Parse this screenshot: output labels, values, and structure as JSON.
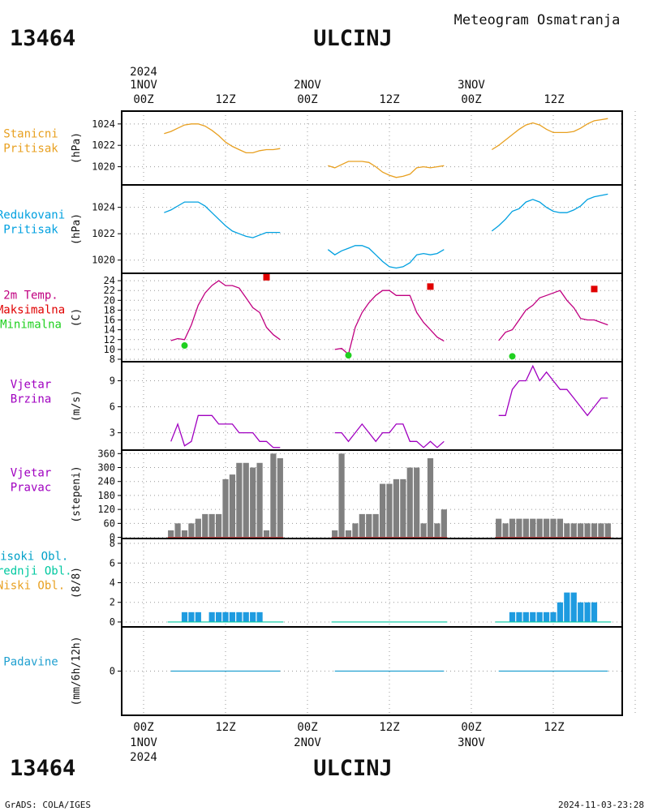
{
  "header": {
    "station_id": "13464",
    "station_name": "ULCINJ",
    "product": "Meteogram Osmatranja"
  },
  "time_axis": {
    "year": "2024",
    "day_labels": [
      "1NOV",
      "2NOV",
      "3NOV"
    ],
    "tick_labels": [
      "00Z",
      "12Z",
      "00Z",
      "12Z",
      "00Z",
      "12Z"
    ]
  },
  "footer": {
    "credit": "GrADS: COLA/IGES",
    "timestamp": "2024-11-03-23:28"
  },
  "colors": {
    "pressure": "#e8a020",
    "reduced_pressure": "#00a0e0",
    "temperature": "#c00080",
    "max_temp": "#e00000",
    "min_temp": "#20d020",
    "wind": "#a000c0",
    "direction_bar": "#808080",
    "direction_base": "#c04040",
    "clouds_high": "#00a0c8",
    "clouds_mid": "#00c8a0",
    "clouds_low": "#e8a020",
    "cloud_bar": "#1e9be0",
    "precip": "#20a0d0",
    "grid": "#999999"
  },
  "chart_data": [
    {
      "type": "line",
      "panel": "station_pressure",
      "labels": [
        "Stanicni",
        "Pritisak"
      ],
      "ylabel": "(hPa)",
      "ylim": [
        1018.3,
        1025.2
      ],
      "yticks": [
        1020,
        1022,
        1024
      ],
      "x_unit": "hours since 1NOV 00Z",
      "segments": [
        {
          "x": [
            3,
            4,
            5,
            6,
            7,
            8,
            9,
            10,
            11,
            12,
            13,
            14,
            15,
            16,
            17,
            18,
            19,
            20
          ],
          "y": [
            1023.1,
            1023.3,
            1023.6,
            1023.9,
            1024.0,
            1024.0,
            1023.8,
            1023.4,
            1022.9,
            1022.3,
            1021.9,
            1021.6,
            1021.3,
            1021.3,
            1021.5,
            1021.6,
            1021.6,
            1021.7
          ]
        },
        {
          "x": [
            27,
            28,
            29,
            30,
            31,
            32,
            33,
            34,
            35,
            36,
            37,
            38,
            39,
            40,
            41,
            42,
            43,
            44
          ],
          "y": [
            1020.1,
            1019.9,
            1020.2,
            1020.5,
            1020.5,
            1020.5,
            1020.4,
            1020.0,
            1019.5,
            1019.2,
            1019.0,
            1019.1,
            1019.3,
            1019.9,
            1020.0,
            1019.9,
            1020.0,
            1020.1
          ]
        },
        {
          "x": [
            51,
            52,
            53,
            54,
            55,
            56,
            57,
            58,
            59,
            60,
            61,
            62,
            63,
            64,
            65,
            66,
            67,
            68
          ],
          "y": [
            1021.6,
            1022.0,
            1022.5,
            1023.0,
            1023.5,
            1023.9,
            1024.1,
            1023.9,
            1023.5,
            1023.2,
            1023.2,
            1023.2,
            1023.3,
            1023.6,
            1024.0,
            1024.3,
            1024.4,
            1024.5
          ]
        }
      ]
    },
    {
      "type": "line",
      "panel": "reduced_pressure",
      "labels": [
        "Redukovani",
        "Pritisak"
      ],
      "ylabel": "(hPa)",
      "ylim": [
        1019.0,
        1025.7
      ],
      "yticks": [
        1020,
        1022,
        1024
      ],
      "x_unit": "hours since 1NOV 00Z",
      "segments": [
        {
          "x": [
            3,
            4,
            5,
            6,
            7,
            8,
            9,
            10,
            11,
            12,
            13,
            14,
            15,
            16,
            17,
            18,
            19,
            20
          ],
          "y": [
            1023.6,
            1023.8,
            1024.1,
            1024.4,
            1024.4,
            1024.4,
            1024.1,
            1023.6,
            1023.1,
            1022.6,
            1022.2,
            1022.0,
            1021.8,
            1021.7,
            1021.9,
            1022.1,
            1022.1,
            1022.1
          ]
        },
        {
          "x": [
            27,
            28,
            29,
            30,
            31,
            32,
            33,
            34,
            35,
            36,
            37,
            38,
            39,
            40,
            41,
            42,
            43,
            44
          ],
          "y": [
            1020.8,
            1020.4,
            1020.7,
            1020.9,
            1021.1,
            1021.1,
            1020.9,
            1020.4,
            1019.9,
            1019.5,
            1019.4,
            1019.5,
            1019.8,
            1020.4,
            1020.5,
            1020.4,
            1020.5,
            1020.8
          ]
        },
        {
          "x": [
            51,
            52,
            53,
            54,
            55,
            56,
            57,
            58,
            59,
            60,
            61,
            62,
            63,
            64,
            65,
            66,
            67,
            68
          ],
          "y": [
            1022.2,
            1022.6,
            1023.1,
            1023.7,
            1023.9,
            1024.4,
            1024.6,
            1024.4,
            1024.0,
            1023.7,
            1023.6,
            1023.6,
            1023.8,
            1024.1,
            1024.6,
            1024.8,
            1024.9,
            1025.0
          ]
        }
      ]
    },
    {
      "type": "line",
      "panel": "temperature",
      "labels": [
        "2m Temp.",
        "Maksimalna",
        "Minimalna"
      ],
      "ylabel": "(C)",
      "ylim": [
        7.5,
        25.5
      ],
      "yticks": [
        8,
        10,
        12,
        14,
        16,
        18,
        20,
        22,
        24
      ],
      "x_unit": "hours since 1NOV 00Z",
      "segments": [
        {
          "x": [
            4,
            5,
            6,
            7,
            8,
            9,
            10,
            11,
            12,
            13,
            14,
            15,
            16,
            17,
            18,
            19,
            20
          ],
          "y": [
            11.8,
            12.2,
            12.0,
            15.0,
            19.0,
            21.5,
            23.0,
            24.0,
            23.0,
            23.0,
            22.5,
            20.5,
            18.5,
            17.5,
            14.5,
            13.0,
            12.0
          ]
        },
        {
          "x": [
            28,
            29,
            30,
            31,
            32,
            33,
            34,
            35,
            36,
            37,
            38,
            39,
            40,
            41,
            42,
            43,
            44
          ],
          "y": [
            10.0,
            10.2,
            9.0,
            14.5,
            17.5,
            19.5,
            21.0,
            22.0,
            22.0,
            21.0,
            21.0,
            21.0,
            17.5,
            15.5,
            14.0,
            12.5,
            11.7
          ]
        },
        {
          "x": [
            52,
            53,
            54,
            55,
            56,
            57,
            58,
            59,
            60,
            61,
            62,
            63,
            64,
            65,
            66,
            67,
            68
          ],
          "y": [
            11.8,
            13.5,
            14.0,
            16.0,
            18.0,
            19.0,
            20.5,
            21.0,
            21.5,
            22.0,
            20.0,
            18.5,
            16.3,
            16.0,
            16.0,
            15.5,
            15.0
          ]
        }
      ],
      "max_points": {
        "x": [
          18,
          42,
          66
        ],
        "y": [
          24.7,
          22.8,
          22.3
        ]
      },
      "min_points": {
        "x": [
          6,
          30,
          54
        ],
        "y": [
          10.8,
          8.8,
          8.6
        ]
      }
    },
    {
      "type": "line",
      "panel": "wind_speed",
      "labels": [
        "Vjetar",
        "Brzina"
      ],
      "ylabel": "(m/s)",
      "ylim": [
        1.0,
        11.2
      ],
      "yticks": [
        3,
        6,
        9
      ],
      "x_unit": "hours since 1NOV 00Z",
      "segments": [
        {
          "x": [
            4,
            5,
            6,
            7,
            8,
            9,
            10,
            11,
            12,
            13,
            14,
            15,
            16,
            17,
            18,
            19,
            20
          ],
          "y": [
            2,
            4,
            1.5,
            2,
            5,
            5,
            5,
            4,
            4,
            4,
            3,
            3,
            3,
            2,
            2,
            1.3,
            1.3
          ]
        },
        {
          "x": [
            28,
            29,
            30,
            31,
            32,
            33,
            34,
            35,
            36,
            37,
            38,
            39,
            40,
            41,
            42,
            43,
            44
          ],
          "y": [
            3,
            3,
            2,
            3,
            4,
            3,
            2,
            3,
            3,
            4,
            4,
            2,
            2,
            1.3,
            2,
            1.3,
            2
          ]
        },
        {
          "x": [
            52,
            53,
            54,
            55,
            56,
            57,
            58,
            59,
            60,
            61,
            62,
            63,
            64,
            65,
            66,
            67,
            68
          ],
          "y": [
            5,
            5,
            8,
            9,
            9,
            10.7,
            9,
            10,
            9,
            8,
            8,
            7,
            6,
            5,
            6,
            7,
            7
          ]
        }
      ]
    },
    {
      "type": "bar",
      "panel": "wind_direction",
      "labels": [
        "Vjetar",
        "Pravac"
      ],
      "ylabel": "(stepeni)",
      "ylim": [
        -5,
        375
      ],
      "yticks": [
        0,
        60,
        120,
        180,
        240,
        300,
        360
      ],
      "x_unit": "hours since 1NOV 00Z",
      "x": [
        4,
        5,
        6,
        7,
        8,
        9,
        10,
        11,
        12,
        13,
        14,
        15,
        16,
        17,
        18,
        19,
        20,
        28,
        29,
        30,
        31,
        32,
        33,
        34,
        35,
        36,
        37,
        38,
        39,
        40,
        41,
        42,
        43,
        44,
        52,
        53,
        54,
        55,
        56,
        57,
        58,
        59,
        60,
        61,
        62,
        63,
        64,
        65,
        66,
        67,
        68
      ],
      "values": [
        30,
        60,
        30,
        60,
        80,
        100,
        100,
        100,
        250,
        270,
        320,
        320,
        300,
        320,
        30,
        360,
        340,
        30,
        360,
        30,
        60,
        100,
        100,
        100,
        230,
        230,
        250,
        250,
        300,
        300,
        60,
        340,
        60,
        120,
        80,
        60,
        80,
        80,
        80,
        80,
        80,
        80,
        80,
        80,
        60,
        60,
        60,
        60,
        60,
        60,
        60
      ]
    },
    {
      "type": "bar",
      "panel": "clouds",
      "labels": [
        "Visoki Obl.",
        "Srednji Obl.",
        "Niski Obl."
      ],
      "ylabel": "(8/8)",
      "ylim": [
        -0.5,
        8.5
      ],
      "yticks": [
        0,
        2,
        4,
        6,
        8
      ],
      "x_unit": "hours since 1NOV 00Z",
      "x": [
        4,
        5,
        6,
        7,
        8,
        9,
        10,
        11,
        12,
        13,
        14,
        15,
        16,
        17,
        18,
        19,
        20,
        28,
        29,
        30,
        31,
        32,
        33,
        34,
        35,
        36,
        37,
        38,
        39,
        40,
        41,
        42,
        43,
        44,
        52,
        53,
        54,
        55,
        56,
        57,
        58,
        59,
        60,
        61,
        62,
        63,
        64,
        65,
        66,
        67,
        68
      ],
      "values": [
        0,
        0,
        1,
        1,
        1,
        0,
        1,
        1,
        1,
        1,
        1,
        1,
        1,
        1,
        0,
        0,
        0,
        0,
        0,
        0,
        0,
        0,
        0,
        0,
        0,
        0,
        0,
        0,
        0,
        0,
        0,
        0,
        0,
        0,
        0,
        0,
        1,
        1,
        1,
        1,
        1,
        1,
        1,
        2,
        3,
        3,
        2,
        2,
        2,
        0,
        0
      ]
    },
    {
      "type": "line",
      "panel": "precipitation",
      "labels": [
        "Padavine"
      ],
      "ylabel": "(mm/6h/12h)",
      "ylim": [
        -5,
        5
      ],
      "yticks": [
        0
      ],
      "x_unit": "hours since 1NOV 00Z",
      "segments": [
        {
          "x": [
            4,
            20
          ],
          "y": [
            0,
            0
          ]
        },
        {
          "x": [
            28,
            44
          ],
          "y": [
            0,
            0
          ]
        },
        {
          "x": [
            52,
            68
          ],
          "y": [
            0,
            0
          ]
        }
      ]
    }
  ]
}
